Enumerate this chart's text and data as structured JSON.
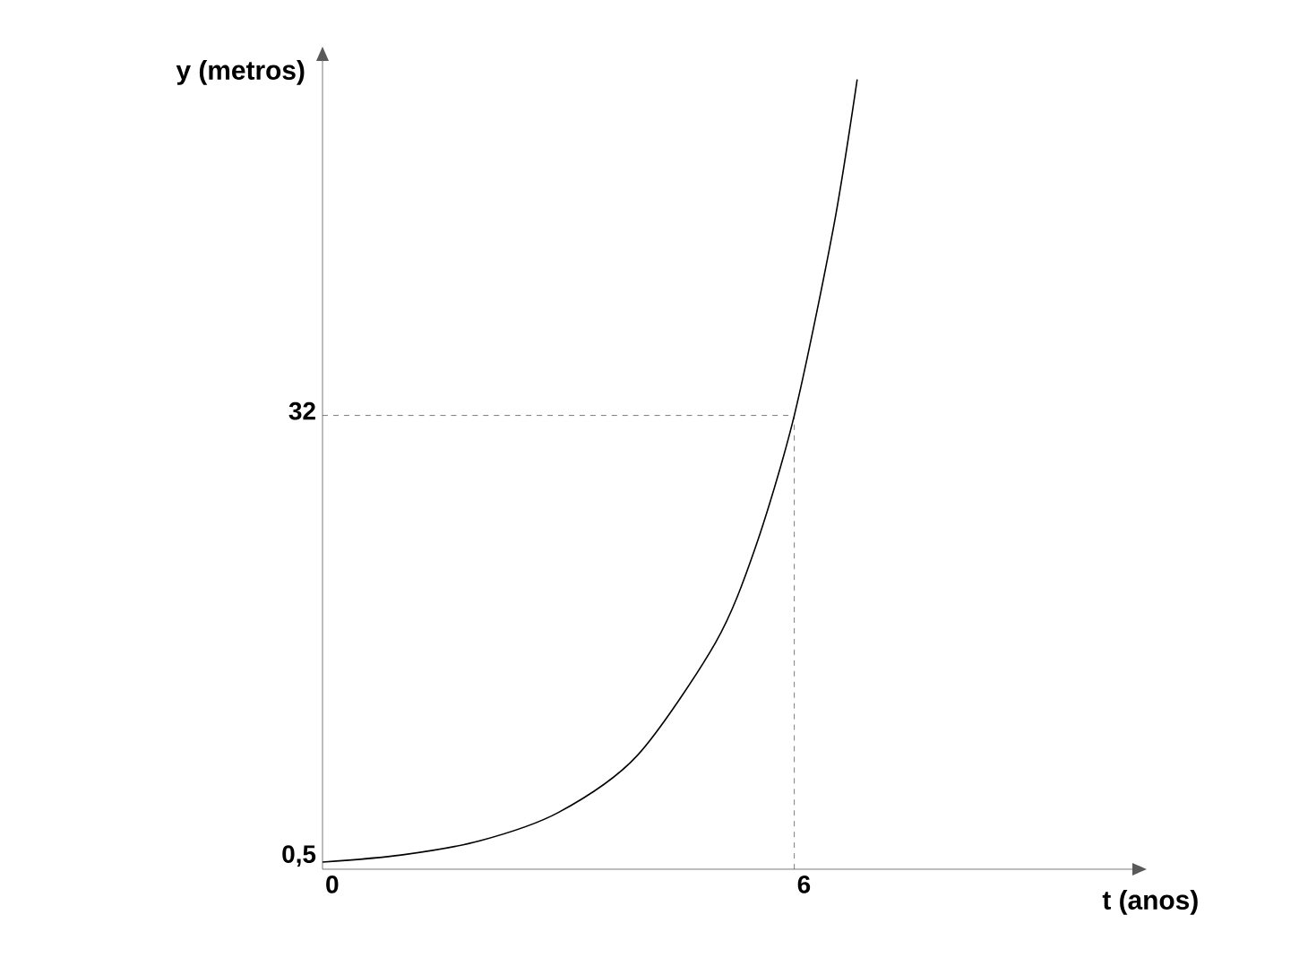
{
  "chart_data": {
    "type": "line",
    "xlabel": "t (anos)",
    "ylabel": "y (metros)",
    "x": [
      0,
      1,
      2,
      3,
      4,
      5,
      5.5,
      6,
      6.5,
      6.8
    ],
    "values": [
      0.5,
      1,
      2,
      4,
      8,
      16,
      22.6,
      32,
      45.3,
      55.7
    ],
    "color": "#000000",
    "xlim": [
      0,
      10.3
    ],
    "ylim": [
      0,
      57
    ],
    "xticks": [
      0,
      6
    ],
    "yticks": [
      {
        "value": 0.5,
        "label": "0,5"
      },
      32
    ],
    "ref_lines": [
      {
        "axis": "y",
        "value": 32,
        "line_style": "dashed"
      },
      {
        "axis": "x",
        "value": 6,
        "line_style": "dashed"
      }
    ],
    "grid": false,
    "marker": "none",
    "line_style": "solid"
  }
}
